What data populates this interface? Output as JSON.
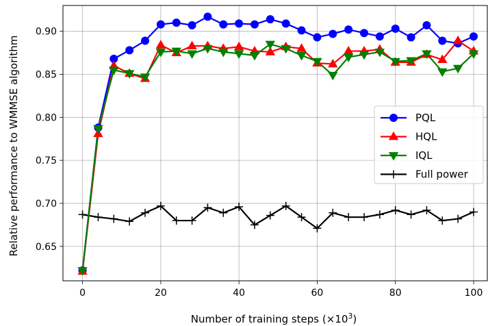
{
  "chart_data": {
    "type": "line",
    "xlabel": "Number of training steps (×10",
    "xlabel_sup": "3",
    "xlabel_tail": ")",
    "ylabel": "Relative performance to WMMSE algorithm",
    "xlim": [
      -5,
      103.5
    ],
    "ylim": [
      0.61,
      0.93
    ],
    "xticks": [
      0,
      20,
      40,
      60,
      80,
      100
    ],
    "yticks": [
      0.65,
      0.7,
      0.75,
      0.8,
      0.85,
      0.9
    ],
    "ytick_labels": [
      "0.65",
      "0.70",
      "0.75",
      "0.80",
      "0.85",
      "0.90"
    ],
    "grid": true,
    "legend_position": "center-right",
    "x": [
      0,
      4,
      8,
      12,
      16,
      20,
      24,
      28,
      32,
      36,
      40,
      44,
      48,
      52,
      56,
      60,
      64,
      68,
      72,
      76,
      80,
      84,
      88,
      92,
      96,
      100
    ],
    "series": [
      {
        "name": "PQL",
        "color": "#0000ff",
        "marker": "circle",
        "values": [
          0.622,
          0.788,
          0.868,
          0.878,
          0.889,
          0.908,
          0.91,
          0.907,
          0.917,
          0.908,
          0.909,
          0.908,
          0.914,
          0.909,
          0.901,
          0.893,
          0.897,
          0.902,
          0.898,
          0.894,
          0.903,
          0.893,
          0.907,
          0.889,
          0.886,
          0.894
        ]
      },
      {
        "name": "HQL",
        "color": "#ff0000",
        "marker": "triangle-up",
        "values": [
          0.621,
          0.781,
          0.86,
          0.851,
          0.845,
          0.884,
          0.875,
          0.883,
          0.883,
          0.88,
          0.882,
          0.877,
          0.876,
          0.882,
          0.88,
          0.863,
          0.862,
          0.877,
          0.877,
          0.879,
          0.864,
          0.864,
          0.873,
          0.867,
          0.889,
          0.877
        ]
      },
      {
        "name": "IQL",
        "color": "#008000",
        "marker": "triangle-down",
        "values": [
          0.622,
          0.787,
          0.855,
          0.851,
          0.847,
          0.876,
          0.877,
          0.874,
          0.88,
          0.876,
          0.874,
          0.872,
          0.885,
          0.88,
          0.872,
          0.865,
          0.849,
          0.87,
          0.873,
          0.876,
          0.865,
          0.866,
          0.874,
          0.853,
          0.857,
          0.874
        ]
      },
      {
        "name": "Full power",
        "color": "#000000",
        "marker": "plus",
        "values": [
          0.687,
          0.684,
          0.682,
          0.679,
          0.689,
          0.697,
          0.68,
          0.68,
          0.695,
          0.689,
          0.696,
          0.675,
          0.686,
          0.697,
          0.684,
          0.671,
          0.689,
          0.684,
          0.684,
          0.687,
          0.692,
          0.687,
          0.692,
          0.68,
          0.682,
          0.69
        ]
      }
    ]
  }
}
